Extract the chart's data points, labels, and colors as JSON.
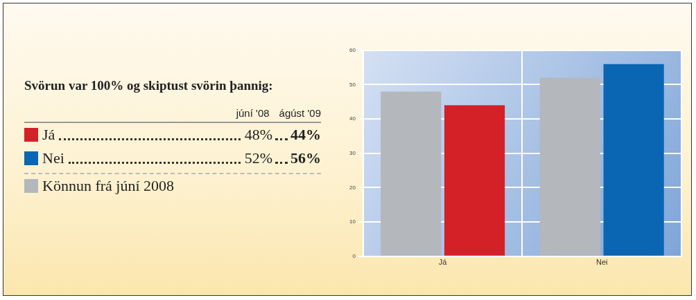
{
  "chart_data": {
    "type": "bar",
    "title": "Svörun var 100% og skiptust svörin þannig:",
    "categories": [
      "Já",
      "Nei"
    ],
    "series": [
      {
        "name": "Könnun frá júní 2008",
        "color": "#b4b7bb",
        "values": [
          48,
          52
        ]
      },
      {
        "colors": [
          "#d42027",
          "#0a66b2"
        ],
        "values": [
          44,
          56
        ]
      }
    ],
    "annotations": [
      "júní '08",
      "ágúst '09",
      "48%",
      "44%",
      "52%",
      "56%"
    ],
    "ylim": [
      0,
      60
    ],
    "yticks": [
      0,
      10,
      20,
      30,
      40,
      50,
      60
    ],
    "grid": true,
    "legend": "left"
  }
}
